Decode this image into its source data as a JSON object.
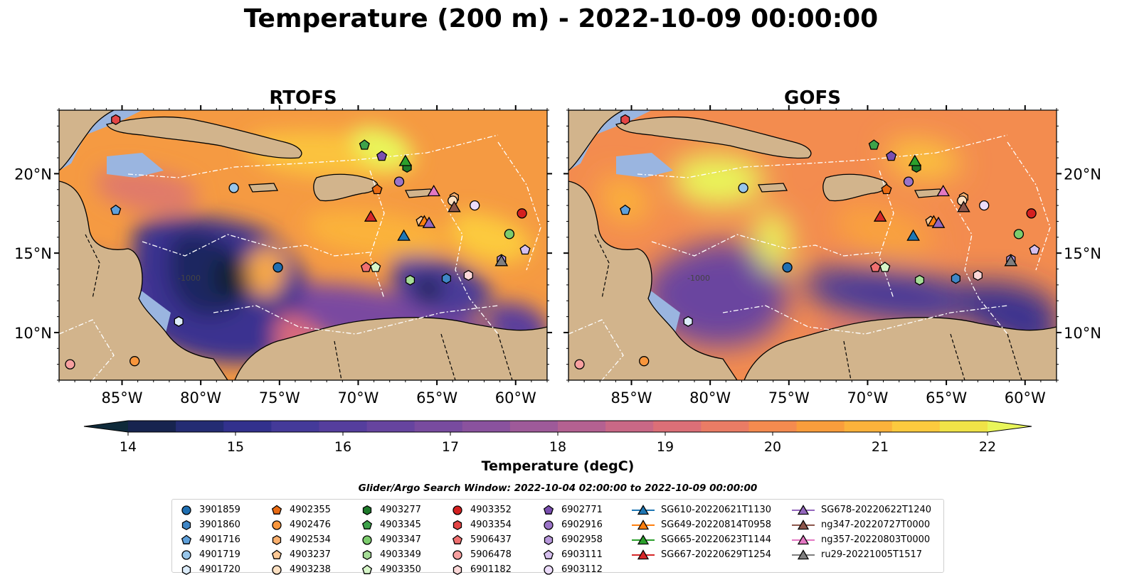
{
  "title": "Temperature (200 m) - 2022-10-09 00:00:00",
  "panels": [
    {
      "name": "RTOFS",
      "variant": "rtofs"
    },
    {
      "name": "GOFS",
      "variant": "gofs"
    }
  ],
  "map": {
    "lon_range": [
      -89,
      -58
    ],
    "lat_range": [
      7,
      24
    ],
    "lon_ticks": [
      "85°W",
      "80°W",
      "75°W",
      "70°W",
      "65°W",
      "60°W"
    ],
    "lon_tick_values": [
      -85,
      -80,
      -75,
      -70,
      -65,
      -60
    ],
    "lat_ticks": [
      "10°N",
      "15°N",
      "20°N"
    ],
    "lat_tick_values": [
      10,
      15,
      20
    ],
    "land_color": "#d2b48c",
    "shelf_color": "#9ab5e0",
    "contour_label": "-1000"
  },
  "colorbar": {
    "label": "Temperature (degC)",
    "min": 14,
    "max": 22,
    "step": 0.5,
    "tick_labels": [
      "14",
      "15",
      "16",
      "17",
      "18",
      "19",
      "20",
      "21",
      "22"
    ],
    "extend": "both",
    "colors": [
      "#0f2a3a",
      "#17244f",
      "#242c73",
      "#32318d",
      "#443a99",
      "#553e9d",
      "#66449f",
      "#784b9f",
      "#8a529e",
      "#9e5a99",
      "#b46191",
      "#c96886",
      "#dc6f77",
      "#ea7c65",
      "#f48b4f",
      "#f99d3c",
      "#fbb23b",
      "#fcca3e",
      "#f0e347",
      "#e9f65a"
    ]
  },
  "search_window": "Glider/Argo Search Window: 2022-10-04 02:00:00 to 2022-10-09 00:00:00",
  "legend": {
    "argo": [
      {
        "label": "3901859",
        "marker": "circle",
        "color": "#1f6fb2",
        "lon": -75.1,
        "lat": 14.1
      },
      {
        "label": "3901860",
        "marker": "hexagon",
        "color": "#3f86c6",
        "lon": -64.4,
        "lat": 13.4
      },
      {
        "label": "4901716",
        "marker": "pentagon",
        "color": "#5fa0da",
        "lon": -85.4,
        "lat": 17.7
      },
      {
        "label": "4901719",
        "marker": "circle",
        "color": "#98c6ea",
        "lon": -77.9,
        "lat": 19.1
      },
      {
        "label": "4901720",
        "marker": "hexagon",
        "color": "#dcecfa",
        "lon": -81.4,
        "lat": 10.7
      },
      {
        "label": "4902355",
        "marker": "pentagon",
        "color": "#e96b14",
        "lon": -68.8,
        "lat": 19.0
      },
      {
        "label": "4902476",
        "marker": "circle",
        "color": "#f9963c",
        "lon": -84.2,
        "lat": 8.2
      },
      {
        "label": "4902534",
        "marker": "hexagon",
        "color": "#fbb06e",
        "lon": -63.9,
        "lat": 18.5
      },
      {
        "label": "4903237",
        "marker": "pentagon",
        "color": "#fdc996",
        "lon": -66.0,
        "lat": 17.0
      },
      {
        "label": "4903238",
        "marker": "circle",
        "color": "#fde0c2",
        "lon": -64.0,
        "lat": 18.3
      },
      {
        "label": "4903277",
        "marker": "hexagon",
        "color": "#1e7a2a",
        "lon": -66.9,
        "lat": 20.4
      },
      {
        "label": "4903345",
        "marker": "pentagon",
        "color": "#3ea24a",
        "lon": -69.6,
        "lat": 21.8
      },
      {
        "label": "4903347",
        "marker": "circle",
        "color": "#7ccc6d",
        "lon": -60.4,
        "lat": 16.2
      },
      {
        "label": "4903349",
        "marker": "hexagon",
        "color": "#a6dd97",
        "lon": -66.7,
        "lat": 13.3
      },
      {
        "label": "4903350",
        "marker": "pentagon",
        "color": "#d6f5c8",
        "lon": -68.9,
        "lat": 14.1
      },
      {
        "label": "4903352",
        "marker": "circle",
        "color": "#d42020",
        "lon": -59.6,
        "lat": 17.5
      },
      {
        "label": "4903354",
        "marker": "hexagon",
        "color": "#e34545",
        "lon": -85.4,
        "lat": 23.4
      },
      {
        "label": "5906437",
        "marker": "pentagon",
        "color": "#f07070",
        "lon": -69.5,
        "lat": 14.1
      },
      {
        "label": "5906478",
        "marker": "circle",
        "color": "#f7a0a0",
        "lon": -88.3,
        "lat": 8.0
      },
      {
        "label": "6901182",
        "marker": "hexagon",
        "color": "#fcd8d8",
        "lon": -63.0,
        "lat": 13.6
      },
      {
        "label": "6902771",
        "marker": "pentagon",
        "color": "#7a4fb0",
        "lon": -68.5,
        "lat": 21.1
      },
      {
        "label": "6902916",
        "marker": "circle",
        "color": "#9b74c8",
        "lon": -67.4,
        "lat": 19.5
      },
      {
        "label": "6902958",
        "marker": "hexagon",
        "color": "#b898dc",
        "lon": -60.9,
        "lat": 14.6
      },
      {
        "label": "6903111",
        "marker": "pentagon",
        "color": "#d6c0ee",
        "lon": -59.4,
        "lat": 15.2
      },
      {
        "label": "6903112",
        "marker": "circle",
        "color": "#ecdcfb",
        "lon": -62.6,
        "lat": 18.0
      }
    ],
    "gliders": [
      {
        "label": "SG610-20220621T1130",
        "color": "#1f77b4",
        "lon": -67.1,
        "lat": 16.1
      },
      {
        "label": "SG649-20220814T0958",
        "color": "#ff7f0e",
        "lon": -65.8,
        "lat": 17.0
      },
      {
        "label": "SG665-20220623T1144",
        "color": "#2ca02c",
        "lon": -67.0,
        "lat": 20.8
      },
      {
        "label": "SG667-20220629T1254",
        "color": "#d62728",
        "lon": -69.2,
        "lat": 17.3
      },
      {
        "label": "SG678-20220622T1240",
        "color": "#9467bd",
        "lon": -65.5,
        "lat": 16.9
      },
      {
        "label": "ng347-20220727T0000",
        "color": "#8c564b",
        "lon": -63.9,
        "lat": 17.9
      },
      {
        "label": "ng357-20220803T0000",
        "color": "#e377c2",
        "lon": -65.2,
        "lat": 18.9
      },
      {
        "label": "ru29-20221005T1517",
        "color": "#7f7f7f",
        "lon": -60.9,
        "lat": 14.5
      }
    ]
  }
}
